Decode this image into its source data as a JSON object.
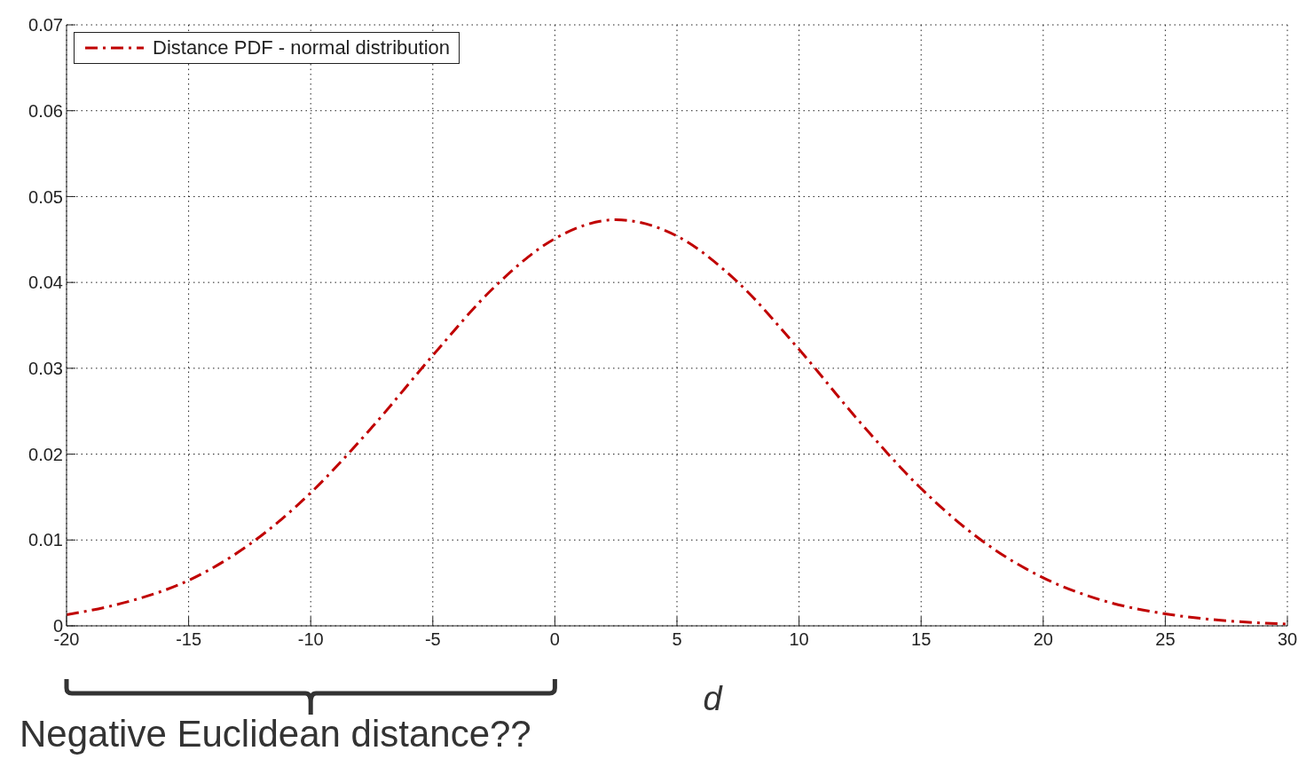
{
  "chart_data": {
    "type": "line",
    "xlabel": "d",
    "annotations": [
      "Negative Euclidean distance??"
    ],
    "x": [
      -20,
      -17.5,
      -15,
      -12.5,
      -10,
      -7.5,
      -5,
      -2.5,
      0,
      2.5,
      5,
      7.5,
      10,
      12.5,
      15,
      17.5,
      20,
      22.5,
      25,
      27.5,
      30
    ],
    "series": [
      {
        "name": "Distance PDF - normal distribution",
        "color": "#c00000",
        "values": [
          0.0013,
          0.0028,
          0.0053,
          0.0095,
          0.0155,
          0.0231,
          0.0315,
          0.0394,
          0.0451,
          0.0473,
          0.0454,
          0.04,
          0.0322,
          0.0237,
          0.016,
          0.0099,
          0.0056,
          0.0029,
          0.0014,
          0.0006,
          0.0002
        ]
      }
    ],
    "xlim": [
      -20,
      30
    ],
    "xticks": [
      -20,
      -15,
      -10,
      -5,
      0,
      5,
      10,
      15,
      20,
      25,
      30
    ],
    "ylim": [
      0,
      0.07
    ],
    "yticks": [
      0,
      0.01,
      0.02,
      0.03,
      0.04,
      0.05,
      0.06,
      0.07
    ],
    "grid": true,
    "legend": "top left",
    "marker": "none",
    "line_style": "dashed"
  }
}
